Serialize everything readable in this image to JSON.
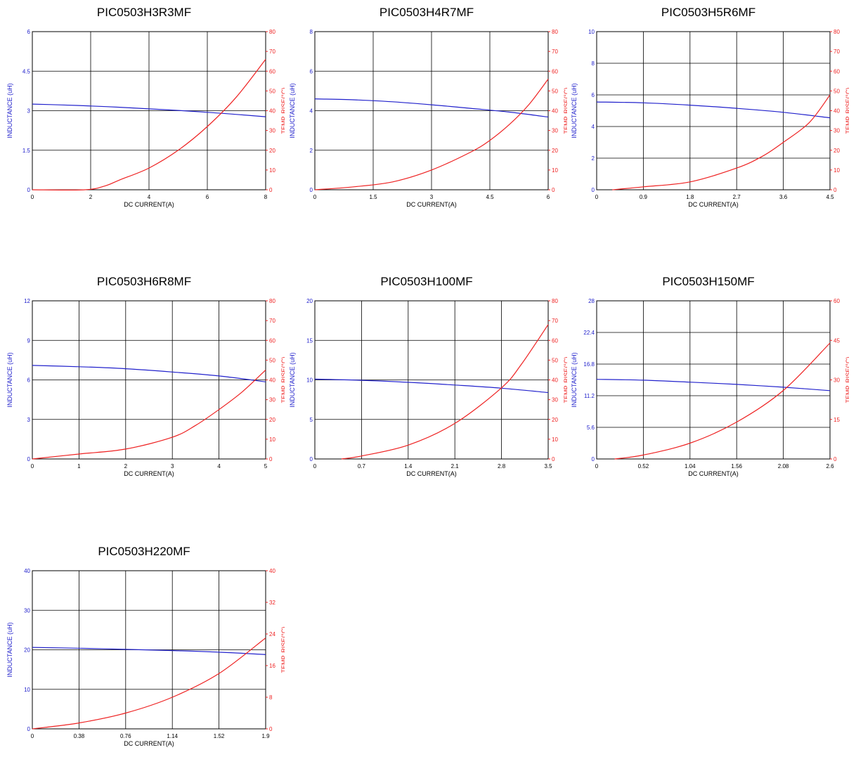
{
  "colors": {
    "inductance": "#2222cc",
    "temp_rise": "#ee2222",
    "grid": "#000000"
  },
  "chart_data": [
    {
      "type": "line",
      "title": "PIC0503H3R3MF",
      "xlabel": "DC CURRENT(A)",
      "ylabel": "INDUCTANCE (uH)",
      "y2label": "TEMP. RISE(°C)",
      "xlim": [
        0,
        8
      ],
      "ylim": [
        0,
        6
      ],
      "y2lim": [
        0,
        80
      ],
      "xticks": [
        "0",
        "2",
        "4",
        "6",
        "8"
      ],
      "yticks": [
        "0",
        "1.5",
        "3",
        "4.5",
        "6"
      ],
      "y2ticks": [
        "0",
        "10",
        "20",
        "30",
        "40",
        "50",
        "60",
        "70",
        "80"
      ],
      "grid": true,
      "series": [
        {
          "axis": "left",
          "x": [
            0,
            1,
            2,
            3,
            4,
            5,
            6,
            7,
            8
          ],
          "y": [
            3.25,
            3.22,
            3.18,
            3.13,
            3.07,
            3.01,
            2.94,
            2.86,
            2.77
          ]
        },
        {
          "axis": "right",
          "x": [
            0,
            1.8,
            2.5,
            3,
            4,
            5,
            6,
            7,
            8
          ],
          "y": [
            0,
            0,
            2,
            5,
            11,
            20,
            32,
            47,
            66
          ]
        }
      ]
    },
    {
      "type": "line",
      "title": "PIC0503H4R7MF",
      "xlabel": "DC CURRENT(A)",
      "ylabel": "INDUCTANCE (uH)",
      "y2label": "TEMP. RISE(°C)",
      "xlim": [
        0,
        6
      ],
      "ylim": [
        0,
        8
      ],
      "y2lim": [
        0,
        80
      ],
      "xticks": [
        "0",
        "1.5",
        "3",
        "4.5",
        "6"
      ],
      "yticks": [
        "0",
        "2",
        "4",
        "6",
        "8"
      ],
      "y2ticks": [
        "0",
        "10",
        "20",
        "30",
        "40",
        "50",
        "60",
        "70",
        "80"
      ],
      "grid": true,
      "series": [
        {
          "axis": "left",
          "x": [
            0,
            1,
            2,
            3,
            4,
            5,
            6
          ],
          "y": [
            4.6,
            4.55,
            4.45,
            4.3,
            4.12,
            3.93,
            3.68
          ]
        },
        {
          "axis": "right",
          "x": [
            0,
            1,
            2,
            3,
            4,
            4.5,
            5,
            5.5,
            6
          ],
          "y": [
            0,
            1.5,
            4,
            10,
            19,
            25,
            33,
            43,
            56
          ]
        }
      ]
    },
    {
      "type": "line",
      "title": "PIC0503H5R6MF",
      "xlabel": "DC CURRENT(A)",
      "ylabel": "INDUCTANCE (uH)",
      "y2label": "TEMP. RISE(°C)",
      "xlim": [
        0,
        4.5
      ],
      "ylim": [
        0,
        10
      ],
      "y2lim": [
        0,
        80
      ],
      "xticks": [
        "0",
        "0.9",
        "1.8",
        "2.7",
        "3.6",
        "4.5"
      ],
      "yticks": [
        "0",
        "2",
        "4",
        "6",
        "8",
        "10"
      ],
      "y2ticks": [
        "0",
        "10",
        "20",
        "30",
        "40",
        "50",
        "60",
        "70",
        "80"
      ],
      "grid": true,
      "series": [
        {
          "axis": "left",
          "x": [
            0,
            0.9,
            1.8,
            2.7,
            3.6,
            4.5
          ],
          "y": [
            5.55,
            5.5,
            5.35,
            5.15,
            4.9,
            4.55
          ]
        },
        {
          "axis": "right",
          "x": [
            0.3,
            0.9,
            1.8,
            2.7,
            3.2,
            3.6,
            4.1,
            4.5
          ],
          "y": [
            0,
            1.5,
            4,
            11,
            17,
            24,
            34,
            48
          ]
        }
      ]
    },
    {
      "type": "line",
      "title": "PIC0503H6R8MF",
      "xlabel": "DC CURRENT(A)",
      "ylabel": "INDUCTANCE (uH)",
      "y2label": "TEMP. RISE(°C)",
      "xlim": [
        0,
        5
      ],
      "ylim": [
        0,
        12
      ],
      "y2lim": [
        0,
        80
      ],
      "xticks": [
        "0",
        "1",
        "2",
        "3",
        "4",
        "5"
      ],
      "yticks": [
        "0",
        "3",
        "6",
        "9",
        "12"
      ],
      "y2ticks": [
        "0",
        "10",
        "20",
        "30",
        "40",
        "50",
        "60",
        "70",
        "80"
      ],
      "grid": true,
      "series": [
        {
          "axis": "left",
          "x": [
            0,
            1,
            2,
            3,
            4,
            5
          ],
          "y": [
            7.1,
            7.0,
            6.85,
            6.6,
            6.3,
            5.85
          ]
        },
        {
          "axis": "right",
          "x": [
            0,
            1,
            2,
            3,
            3.5,
            4,
            4.5,
            5
          ],
          "y": [
            0,
            2.5,
            5,
            11,
            17,
            25,
            34,
            45
          ]
        }
      ]
    },
    {
      "type": "line",
      "title": "PIC0503H100MF",
      "xlabel": "DC CURRENT(A)",
      "ylabel": "INDUCTANCE (uH)",
      "y2label": "TEMP. RISE(°C)",
      "xlim": [
        0,
        3.5
      ],
      "ylim": [
        0,
        20
      ],
      "y2lim": [
        0,
        80
      ],
      "xticks": [
        "0",
        "0.7",
        "1.4",
        "2.1",
        "2.8",
        "3.5"
      ],
      "yticks": [
        "0",
        "5",
        "10",
        "15",
        "20"
      ],
      "y2ticks": [
        "0",
        "10",
        "20",
        "30",
        "40",
        "50",
        "60",
        "70",
        "80"
      ],
      "grid": true,
      "series": [
        {
          "axis": "left",
          "x": [
            0,
            0.7,
            1.4,
            2.1,
            2.8,
            3.5
          ],
          "y": [
            10.1,
            9.95,
            9.7,
            9.35,
            8.95,
            8.4
          ]
        },
        {
          "axis": "right",
          "x": [
            0.4,
            0.7,
            1.4,
            2.1,
            2.8,
            3.1,
            3.5
          ],
          "y": [
            0,
            1.5,
            7,
            18,
            36,
            48,
            68
          ]
        }
      ]
    },
    {
      "type": "line",
      "title": "PIC0503H150MF",
      "xlabel": "DC CURRENT(A)",
      "ylabel": "INDUCTANCE (uH)",
      "y2label": "TEMP. RISE(°C)",
      "xlim": [
        0,
        2.6
      ],
      "ylim": [
        0,
        28
      ],
      "y2lim": [
        0,
        60
      ],
      "xticks": [
        "0",
        "0.52",
        "1.04",
        "1.56",
        "2.08",
        "2.6"
      ],
      "yticks": [
        "0",
        "5.6",
        "11.2",
        "16.8",
        "22.4",
        "28"
      ],
      "y2ticks": [
        "0",
        "15",
        "30",
        "45",
        "60"
      ],
      "grid": true,
      "series": [
        {
          "axis": "left",
          "x": [
            0,
            0.52,
            1.04,
            1.56,
            2.08,
            2.6
          ],
          "y": [
            14.1,
            13.95,
            13.6,
            13.2,
            12.7,
            12.1
          ]
        },
        {
          "axis": "right",
          "x": [
            0.2,
            0.52,
            1.04,
            1.56,
            2.08,
            2.6
          ],
          "y": [
            0,
            1.5,
            6,
            14,
            26,
            44
          ]
        }
      ]
    },
    {
      "type": "line",
      "title": "PIC0503H220MF",
      "xlabel": "DC CURRENT(A)",
      "ylabel": "INDUCTANCE (uH)",
      "y2label": "TEMP. RISE(°C)",
      "xlim": [
        0,
        1.9
      ],
      "ylim": [
        0,
        40
      ],
      "y2lim": [
        0,
        40
      ],
      "xticks": [
        "0",
        "0.38",
        "0.76",
        "1.14",
        "1.52",
        "1.9"
      ],
      "yticks": [
        "0",
        "10",
        "20",
        "30",
        "40"
      ],
      "y2ticks": [
        "0",
        "8",
        "16",
        "24",
        "32",
        "40"
      ],
      "grid": true,
      "series": [
        {
          "axis": "left",
          "x": [
            0,
            0.38,
            0.76,
            1.14,
            1.52,
            1.9
          ],
          "y": [
            20.6,
            20.4,
            20.1,
            19.8,
            19.4,
            18.8
          ]
        },
        {
          "axis": "right",
          "x": [
            0,
            0.38,
            0.76,
            1.14,
            1.52,
            1.9
          ],
          "y": [
            0,
            1.5,
            4,
            8,
            14,
            23
          ]
        }
      ]
    }
  ]
}
